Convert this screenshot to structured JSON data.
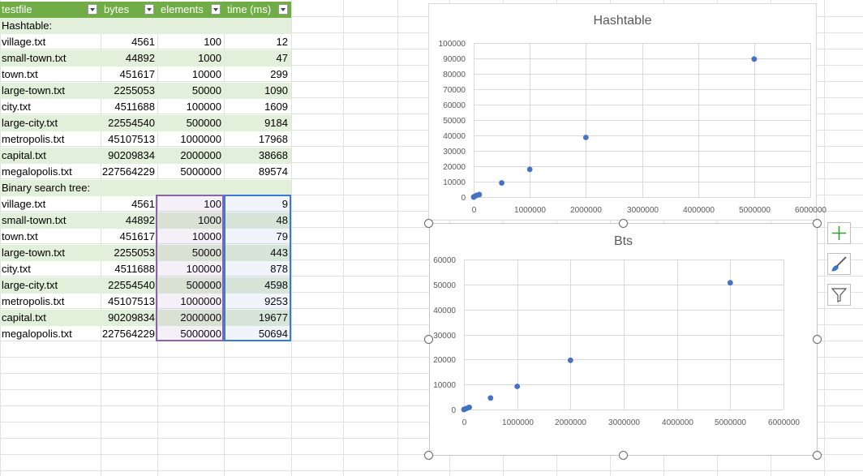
{
  "headers": [
    "testfile",
    "bytes",
    "elements",
    "time (ms)"
  ],
  "sections": [
    {
      "label": "Hashtable:",
      "rows": [
        [
          "village.txt",
          "4561",
          "100",
          "12"
        ],
        [
          "small-town.txt",
          "44892",
          "1000",
          "47"
        ],
        [
          "town.txt",
          "451617",
          "10000",
          "299"
        ],
        [
          "large-town.txt",
          "2255053",
          "50000",
          "1090"
        ],
        [
          "city.txt",
          "4511688",
          "100000",
          "1609"
        ],
        [
          "large-city.txt",
          "22554540",
          "500000",
          "9184"
        ],
        [
          "metropolis.txt",
          "45107513",
          "1000000",
          "17968"
        ],
        [
          "capital.txt",
          "90209834",
          "2000000",
          "38668"
        ],
        [
          "megalopolis.txt",
          "227564229",
          "5000000",
          "89574"
        ]
      ]
    },
    {
      "label": "Binary search tree:",
      "rows": [
        [
          "village.txt",
          "4561",
          "100",
          "9"
        ],
        [
          "small-town.txt",
          "44892",
          "1000",
          "48"
        ],
        [
          "town.txt",
          "451617",
          "10000",
          "79"
        ],
        [
          "large-town.txt",
          "2255053",
          "50000",
          "443"
        ],
        [
          "city.txt",
          "4511688",
          "100000",
          "878"
        ],
        [
          "large-city.txt",
          "22554540",
          "500000",
          "4598"
        ],
        [
          "metropolis.txt",
          "45107513",
          "1000000",
          "9253"
        ],
        [
          "capital.txt",
          "90209834",
          "2000000",
          "19677"
        ],
        [
          "megalopolis.txt",
          "227564229",
          "5000000",
          "50694"
        ]
      ]
    }
  ],
  "chart_data": [
    {
      "type": "scatter",
      "title": "Hashtable",
      "x": [
        100,
        1000,
        10000,
        50000,
        100000,
        500000,
        1000000,
        2000000,
        5000000
      ],
      "y": [
        12,
        47,
        299,
        1090,
        1609,
        9184,
        17968,
        38668,
        89574
      ],
      "xlim": [
        0,
        6000000
      ],
      "ylim": [
        0,
        100000
      ],
      "xticks": [
        "0",
        "1000000",
        "2000000",
        "3000000",
        "4000000",
        "5000000",
        "6000000"
      ],
      "yticks": [
        "0",
        "10000",
        "20000",
        "30000",
        "40000",
        "50000",
        "60000",
        "70000",
        "80000",
        "90000",
        "100000"
      ],
      "grid": true,
      "color": "#4472c4"
    },
    {
      "type": "scatter",
      "title": "Bts",
      "x": [
        100,
        1000,
        10000,
        50000,
        100000,
        500000,
        1000000,
        2000000,
        5000000
      ],
      "y": [
        9,
        48,
        79,
        443,
        878,
        4598,
        9253,
        19677,
        50694
      ],
      "xlim": [
        0,
        6000000
      ],
      "ylim": [
        0,
        60000
      ],
      "xticks": [
        "0",
        "1000000",
        "2000000",
        "3000000",
        "4000000",
        "5000000",
        "6000000"
      ],
      "yticks": [
        "0",
        "10000",
        "20000",
        "30000",
        "40000",
        "50000",
        "60000"
      ],
      "grid": true,
      "color": "#4472c4"
    }
  ],
  "side_buttons": [
    {
      "name": "chart-elements-button",
      "icon": "plus-icon"
    },
    {
      "name": "chart-styles-button",
      "icon": "brush-icon"
    },
    {
      "name": "chart-filters-button",
      "icon": "funnel-icon"
    }
  ]
}
